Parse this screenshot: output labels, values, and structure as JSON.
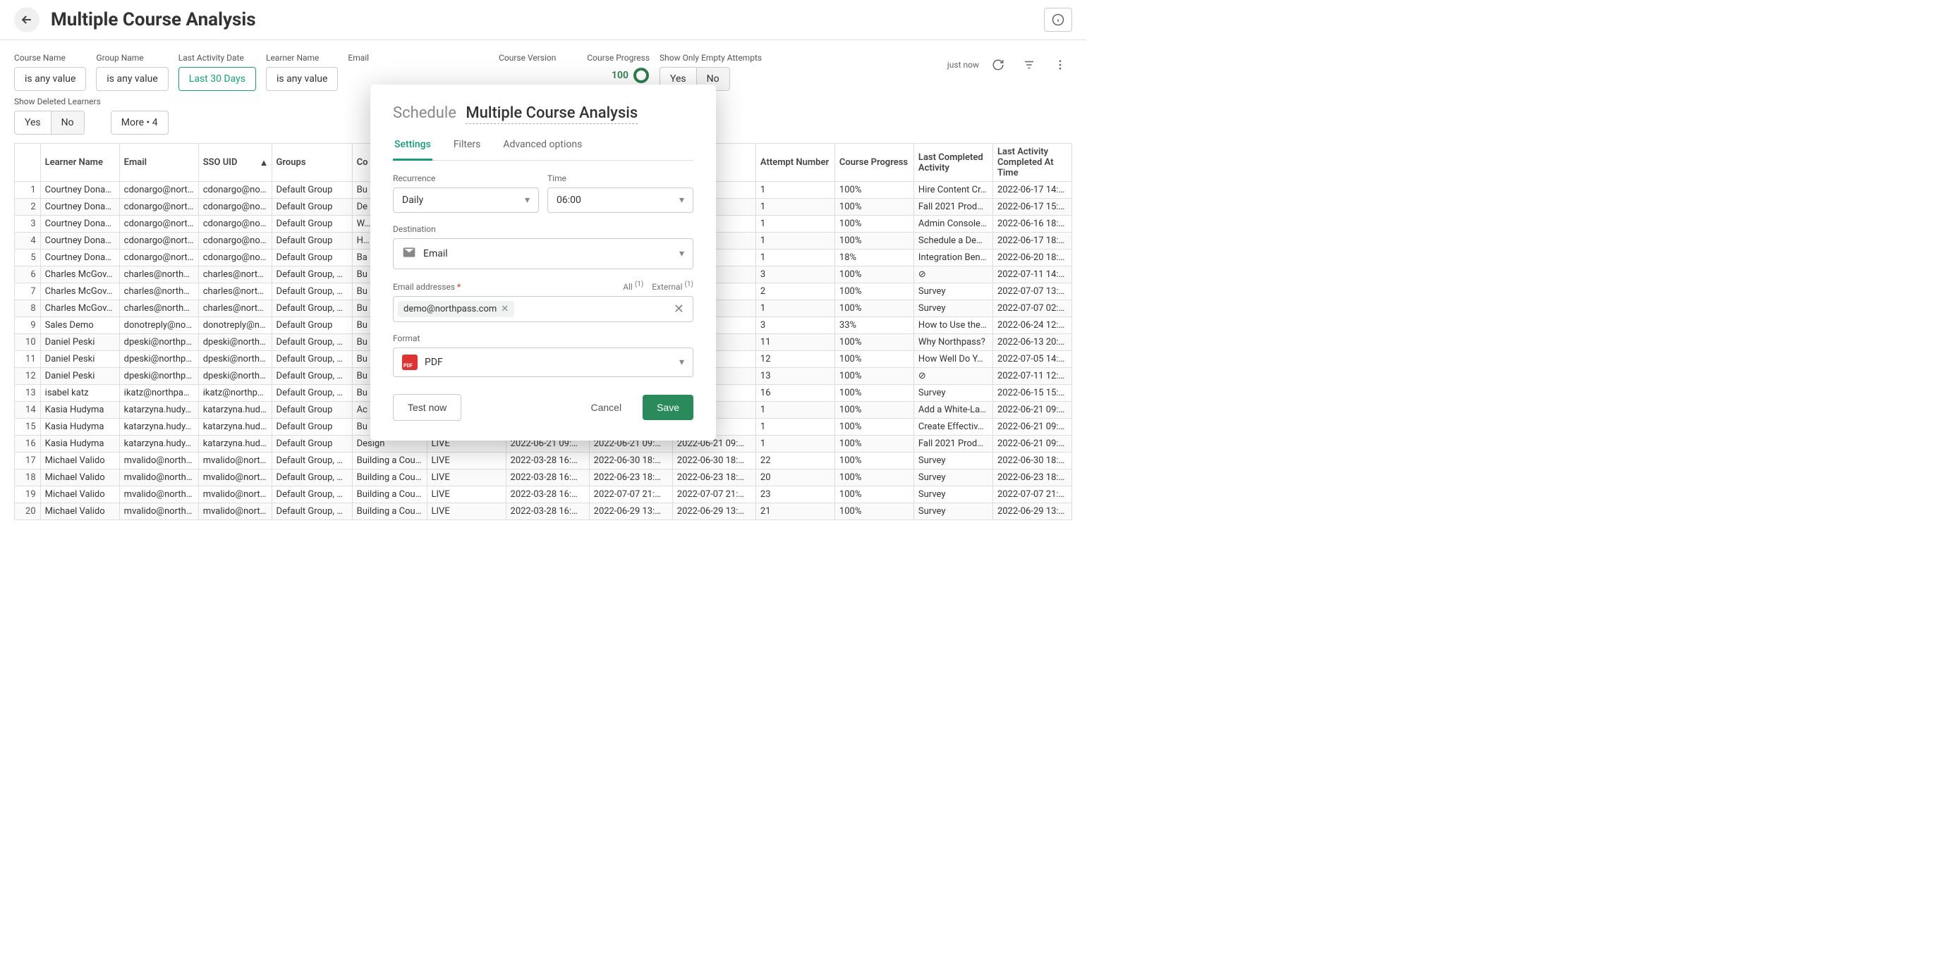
{
  "header": {
    "title": "Multiple Course Analysis"
  },
  "filters": {
    "course_name": {
      "label": "Course Name",
      "value": "is any value"
    },
    "group_name": {
      "label": "Group Name",
      "value": "is any value"
    },
    "last_activity_date": {
      "label": "Last Activity Date",
      "value": "Last 30 Days"
    },
    "learner_name": {
      "label": "Learner Name",
      "value": "is any value"
    },
    "email": {
      "label": "Email"
    },
    "course_version": {
      "label": "Course Version"
    },
    "course_progress": {
      "label": "Course Progress",
      "value": "100"
    },
    "show_only_empty_attempts": {
      "label": "Show Only Empty Attempts",
      "yes": "Yes",
      "no": "No"
    },
    "show_deleted_learners": {
      "label": "Show Deleted Learners",
      "yes": "Yes",
      "no": "No"
    },
    "more": "More • 4",
    "just_now": "just now"
  },
  "table": {
    "columns": {
      "learner_name": "Learner Name",
      "email": "Email",
      "sso_uid": "SSO UID",
      "groups": "Groups",
      "course_name": "Co Na",
      "course_version": "",
      "d1": "",
      "d2": "",
      "d3": "",
      "attempt_number": "Attempt Number",
      "course_progress": "Course Progress",
      "last_completed_activity": "Last Completed Activity",
      "last_activity_completed_at_time": "Last Activity Completed At Time"
    },
    "rows": [
      {
        "idx": "1",
        "name": "Courtney Dona…",
        "email": "cdonargo@nort…",
        "sso": "cdonargo@nort…",
        "groups": "Default Group",
        "course": "Bu",
        "ver": "",
        "d1": "",
        "d2": "",
        "d3": "17 14:…",
        "attempt": "1",
        "prog": "100%",
        "last": "Hire Content Cr…",
        "lastat": "2022-06-17 14:…"
      },
      {
        "idx": "2",
        "name": "Courtney Dona…",
        "email": "cdonargo@nort…",
        "sso": "cdonargo@nort…",
        "groups": "Default Group",
        "course": "De",
        "ver": "",
        "d1": "",
        "d2": "",
        "d3": "17 15:…",
        "attempt": "1",
        "prog": "100%",
        "last": "Fall 2021 Produc…",
        "lastat": "2022-06-17 15:…"
      },
      {
        "idx": "3",
        "name": "Courtney Dona…",
        "email": "cdonargo@nort…",
        "sso": "cdonargo@nort…",
        "groups": "Default Group",
        "course": "W…",
        "ver": "",
        "d1": "",
        "d2": "",
        "d3": "16 18:…",
        "attempt": "1",
        "prog": "100%",
        "last": "Admin Console …",
        "lastat": "2022-06-16 18:…"
      },
      {
        "idx": "4",
        "name": "Courtney Dona…",
        "email": "cdonargo@nort…",
        "sso": "cdonargo@nort…",
        "groups": "Default Group",
        "course": "H…",
        "ver": "",
        "d1": "",
        "d2": "",
        "d3": "17 18:…",
        "attempt": "1",
        "prog": "100%",
        "last": "Schedule a De…",
        "lastat": "2022-06-17 18:…"
      },
      {
        "idx": "5",
        "name": "Courtney Dona…",
        "email": "cdonargo@nort…",
        "sso": "cdonargo@nort…",
        "groups": "Default Group",
        "course": "Ba",
        "ver": "",
        "d1": "",
        "d2": "",
        "d3": "20 18:…",
        "attempt": "1",
        "prog": "18%",
        "last": "Integration Ben…",
        "lastat": "2022-06-20 18:…"
      },
      {
        "idx": "6",
        "name": "Charles McGov…",
        "email": "charles@north…",
        "sso": "charles@north…",
        "groups": "Default Group, …",
        "course": "Bu",
        "ver": "",
        "d1": "",
        "d2": "",
        "d3": "11 14:…",
        "attempt": "3",
        "prog": "100%",
        "last": "⊘",
        "lastat": "2022-07-11 14:…"
      },
      {
        "idx": "7",
        "name": "Charles McGov…",
        "email": "charles@north…",
        "sso": "charles@north…",
        "groups": "Default Group, …",
        "course": "Bu",
        "ver": "",
        "d1": "",
        "d2": "",
        "d3": "07 13:…",
        "attempt": "2",
        "prog": "100%",
        "last": "Survey",
        "lastat": "2022-07-07 13:…"
      },
      {
        "idx": "8",
        "name": "Charles McGov…",
        "email": "charles@north…",
        "sso": "charles@north…",
        "groups": "Default Group, …",
        "course": "Bu",
        "ver": "",
        "d1": "",
        "d2": "",
        "d3": "07 02:…",
        "attempt": "1",
        "prog": "100%",
        "last": "Survey",
        "lastat": "2022-07-07 02:…"
      },
      {
        "idx": "9",
        "name": "Sales Demo",
        "email": "donotreply@no…",
        "sso": "donotreply@no…",
        "groups": "Default Group",
        "course": "Bu",
        "ver": "",
        "d1": "",
        "d2": "",
        "d3": "24 12:…",
        "attempt": "3",
        "prog": "33%",
        "last": "How to Use the…",
        "lastat": "2022-06-24 12:…"
      },
      {
        "idx": "10",
        "name": "Daniel Peski",
        "email": "dpeski@northp…",
        "sso": "dpeski@northp…",
        "groups": "Default Group, …",
        "course": "Bu",
        "ver": "",
        "d1": "",
        "d2": "",
        "d3": "13 20:…",
        "attempt": "11",
        "prog": "100%",
        "last": "Why Northpass?",
        "lastat": "2022-06-13 20:…"
      },
      {
        "idx": "11",
        "name": "Daniel Peski",
        "email": "dpeski@northp…",
        "sso": "dpeski@northp…",
        "groups": "Default Group, …",
        "course": "Bu",
        "ver": "",
        "d1": "",
        "d2": "",
        "d3": "05 14:…",
        "attempt": "12",
        "prog": "100%",
        "last": "How Well Do Y…",
        "lastat": "2022-07-05 14:…"
      },
      {
        "idx": "12",
        "name": "Daniel Peski",
        "email": "dpeski@northp…",
        "sso": "dpeski@northp…",
        "groups": "Default Group, …",
        "course": "Bu",
        "ver": "",
        "d1": "",
        "d2": "",
        "d3": "11 12:…",
        "attempt": "13",
        "prog": "100%",
        "last": "⊘",
        "lastat": "2022-07-11 12:…"
      },
      {
        "idx": "13",
        "name": "isabel katz",
        "email": "ikatz@northpas…",
        "sso": "ikatz@northpas…",
        "groups": "Default Group, …",
        "course": "Bu",
        "ver": "",
        "d1": "",
        "d2": "",
        "d3": "15 15:…",
        "attempt": "16",
        "prog": "100%",
        "last": "Survey",
        "lastat": "2022-06-15 15:…"
      },
      {
        "idx": "14",
        "name": "Kasia Hudyma",
        "email": "katarzyna.hudy…",
        "sso": "katarzyna.hudy…",
        "groups": "Default Group",
        "course": "Ac",
        "ver": "",
        "d1": "",
        "d2": "",
        "d3": "21 09:…",
        "attempt": "1",
        "prog": "100%",
        "last": "Add a White-La…",
        "lastat": "2022-06-21 09:…"
      },
      {
        "idx": "15",
        "name": "Kasia Hudyma",
        "email": "katarzyna.hudy…",
        "sso": "katarzyna.hudy…",
        "groups": "Default Group",
        "course": "Bu",
        "ver": "",
        "d1": "",
        "d2": "",
        "d3": "21 09:…",
        "attempt": "1",
        "prog": "100%",
        "last": "Create Effectiv…",
        "lastat": "2022-06-21 09:…"
      },
      {
        "idx": "16",
        "name": "Kasia Hudyma",
        "email": "katarzyna.hudy…",
        "sso": "katarzyna.hudy…",
        "groups": "Default Group",
        "course": "Design",
        "ver": "LIVE",
        "d1": "2022-06-21 09:…",
        "d2": "2022-06-21 09:…",
        "d3": "2022-06-21 09:…",
        "attempt": "1",
        "prog": "100%",
        "last": "Fall 2021 Produc…",
        "lastat": "2022-06-21 09:…"
      },
      {
        "idx": "17",
        "name": "Michael Valido",
        "email": "mvalido@north…",
        "sso": "mvalido@north…",
        "groups": "Default Group, …",
        "course": "Building a Cour…",
        "ver": "LIVE",
        "d1": "2022-03-28 16:…",
        "d2": "2022-06-30 18:…",
        "d3": "2022-06-30 18:…",
        "attempt": "22",
        "prog": "100%",
        "last": "Survey",
        "lastat": "2022-06-30 18:…"
      },
      {
        "idx": "18",
        "name": "Michael Valido",
        "email": "mvalido@north…",
        "sso": "mvalido@north…",
        "groups": "Default Group, …",
        "course": "Building a Cour…",
        "ver": "LIVE",
        "d1": "2022-03-28 16:…",
        "d2": "2022-06-23 18:…",
        "d3": "2022-06-23 18:…",
        "attempt": "20",
        "prog": "100%",
        "last": "Survey",
        "lastat": "2022-06-23 18:…"
      },
      {
        "idx": "19",
        "name": "Michael Valido",
        "email": "mvalido@north…",
        "sso": "mvalido@north…",
        "groups": "Default Group, …",
        "course": "Building a Cour…",
        "ver": "LIVE",
        "d1": "2022-03-28 16:…",
        "d2": "2022-07-07 21:…",
        "d3": "2022-07-07 21:…",
        "attempt": "23",
        "prog": "100%",
        "last": "Survey",
        "lastat": "2022-07-07 21:…"
      },
      {
        "idx": "20",
        "name": "Michael Valido",
        "email": "mvalido@north…",
        "sso": "mvalido@north…",
        "groups": "Default Group, …",
        "course": "Building a Cour…",
        "ver": "LIVE",
        "d1": "2022-03-28 16:…",
        "d2": "2022-06-29 13:…",
        "d3": "2022-06-29 13:…",
        "attempt": "21",
        "prog": "100%",
        "last": "Survey",
        "lastat": "2022-06-29 13:…"
      }
    ]
  },
  "modal": {
    "schedule_prefix": "Schedule",
    "report_name": "Multiple Course Analysis",
    "tabs": {
      "settings": "Settings",
      "filters": "Filters",
      "advanced": "Advanced options"
    },
    "recurrence_label": "Recurrence",
    "recurrence_value": "Daily",
    "time_label": "Time",
    "time_value": "06:00",
    "destination_label": "Destination",
    "destination_value": "Email",
    "email_addresses_label": "Email addresses",
    "required_mark": "*",
    "all_label": "All",
    "all_count": "(1)",
    "external_label": "External",
    "external_count": "(1)",
    "email_chip": "demo@northpass.com",
    "format_label": "Format",
    "format_value": "PDF",
    "test_now": "Test now",
    "cancel": "Cancel",
    "save": "Save"
  },
  "colors": {
    "accent": "#1a9c7a",
    "primary_btn": "#2a8a5c",
    "gauge_green": "#2e7d4f",
    "required_red": "#c0392b"
  }
}
